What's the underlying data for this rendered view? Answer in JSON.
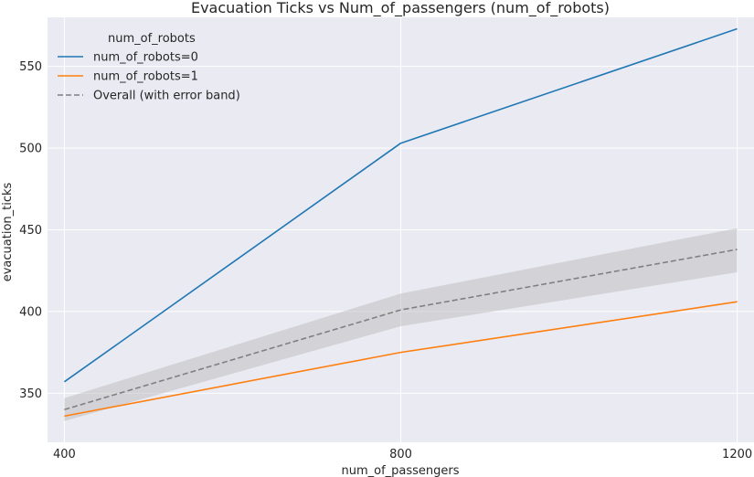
{
  "chart_data": {
    "type": "line",
    "title": "Evacuation Ticks vs Num_of_passengers (num_of_robots)",
    "xlabel": "num_of_passengers",
    "ylabel": "evacuation_ticks",
    "x": [
      400,
      800,
      1200
    ],
    "x_ticks": [
      "400",
      "800",
      "1200"
    ],
    "y_ticks": [
      "350",
      "400",
      "450",
      "500",
      "550"
    ],
    "y_tick_values": [
      350,
      400,
      450,
      500,
      550
    ],
    "xlim": [
      380,
      1220
    ],
    "ylim": [
      320,
      580
    ],
    "grid": true,
    "legend": {
      "title": "num_of_robots",
      "placement": "top-left"
    },
    "series": [
      {
        "name": "num_of_robots=0",
        "values": [
          357,
          503,
          573
        ],
        "color": "#1f77b4",
        "style": "solid"
      },
      {
        "name": "num_of_robots=1",
        "values": [
          336,
          375,
          406
        ],
        "color": "#ff7f0e",
        "style": "solid"
      },
      {
        "name": "Overall (with error band)",
        "values": [
          340,
          401,
          438
        ],
        "lower": [
          333,
          391,
          424
        ],
        "upper": [
          347,
          411,
          451
        ],
        "color": "#808080",
        "band_color": "#bbbbbb",
        "style": "dashed"
      }
    ],
    "colors": {
      "background": "#eaeaf2",
      "grid": "#ffffff"
    }
  }
}
